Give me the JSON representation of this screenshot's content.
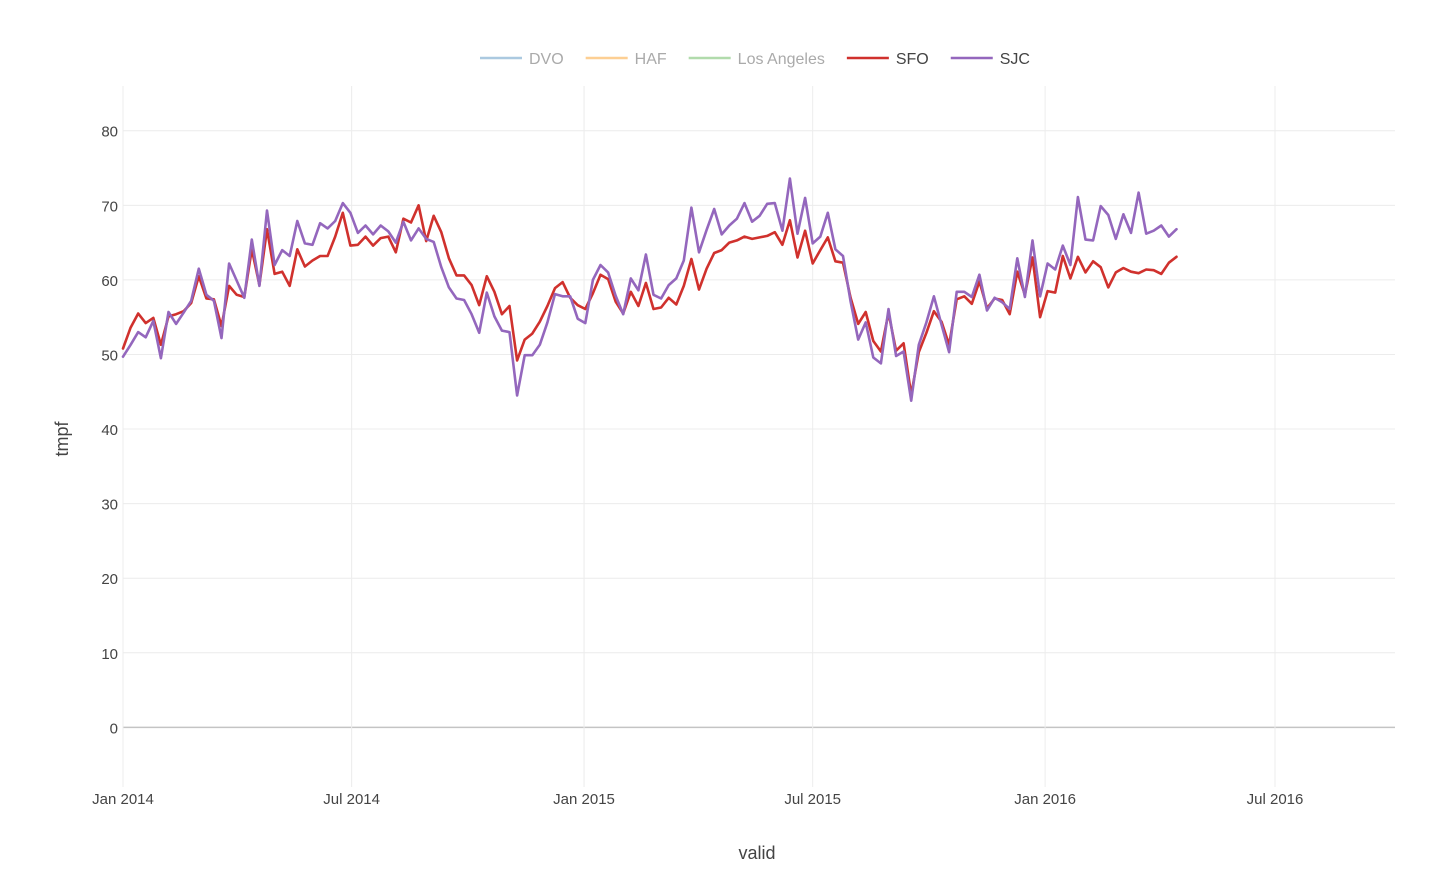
{
  "chart_data": {
    "type": "line",
    "xlabel": "valid",
    "ylabel": "tmpf",
    "x_range": [
      "2014-01-01",
      "2016-10-04"
    ],
    "y_range": [
      -8,
      86
    ],
    "y_ticks": [
      0,
      10,
      20,
      30,
      40,
      50,
      60,
      70,
      80
    ],
    "x_ticks": [
      {
        "date": "2014-01-01",
        "label": "Jan 2014"
      },
      {
        "date": "2014-07-01",
        "label": "Jul 2014"
      },
      {
        "date": "2015-01-01",
        "label": "Jan 2015"
      },
      {
        "date": "2015-07-01",
        "label": "Jul 2015"
      },
      {
        "date": "2016-01-01",
        "label": "Jan 2016"
      },
      {
        "date": "2016-07-01",
        "label": "Jul 2016"
      }
    ],
    "grid": true,
    "legend_position": "top-center",
    "x_start": "2014-01-01",
    "x_step_days": 6,
    "series": [
      {
        "name": "DVO",
        "color": "#8fb7d6",
        "visible": false,
        "values": []
      },
      {
        "name": "HAF",
        "color": "#fdbf6f",
        "visible": false,
        "values": []
      },
      {
        "name": "Los Angeles",
        "color": "#98d091",
        "visible": false,
        "values": []
      },
      {
        "name": "SFO",
        "color": "#d0312d",
        "visible": true,
        "values": [
          50.8,
          53.6,
          55.5,
          54.2,
          54.9,
          51.3,
          55.1,
          55.4,
          55.8,
          56.9,
          60.5,
          57.5,
          57.4,
          53.8,
          59.2,
          58.0,
          57.7,
          64.1,
          59.3,
          66.8,
          60.8,
          61.1,
          59.2,
          64.1,
          61.8,
          62.6,
          63.2,
          63.2,
          65.8,
          69.0,
          64.6,
          64.7,
          65.8,
          64.6,
          65.6,
          65.8,
          63.7,
          68.2,
          67.7,
          70.0,
          65.2,
          68.6,
          66.4,
          62.9,
          60.6,
          60.6,
          59.3,
          56.6,
          60.5,
          58.4,
          55.4,
          56.5,
          49.2,
          52.0,
          52.8,
          54.4,
          56.5,
          58.9,
          59.7,
          57.6,
          56.6,
          56.1,
          58.2,
          60.7,
          60.1,
          57.1,
          55.5,
          58.4,
          56.5,
          59.6,
          56.1,
          56.3,
          57.6,
          56.7,
          59.2,
          62.8,
          58.7,
          61.5,
          63.6,
          64.0,
          65.0,
          65.3,
          65.8,
          65.5,
          65.7,
          65.9,
          66.4,
          64.7,
          68.0,
          63.0,
          66.6,
          62.2,
          64.0,
          65.7,
          62.5,
          62.3,
          57.6,
          54.1,
          55.7,
          51.8,
          50.4,
          55.6,
          50.5,
          51.5,
          44.6,
          50.3,
          52.9,
          55.8,
          54.4,
          51.3,
          57.4,
          57.8,
          56.8,
          59.8,
          56.2,
          57.5,
          57.3,
          55.4,
          61.1,
          58.0,
          63.0,
          55.0,
          58.5,
          58.3,
          63.2,
          60.2,
          63.1,
          61.0,
          62.5,
          61.7,
          59.0,
          61.0,
          61.6,
          61.1,
          60.9,
          61.4,
          61.3,
          60.8,
          62.3,
          63.1
        ]
      },
      {
        "name": "SJC",
        "color": "#9467bd",
        "visible": true,
        "values": [
          49.7,
          51.3,
          53.0,
          52.3,
          54.5,
          49.5,
          55.7,
          54.1,
          55.6,
          57.2,
          61.5,
          58.0,
          57.2,
          52.2,
          62.2,
          59.9,
          57.6,
          65.4,
          59.2,
          69.3,
          62.0,
          64.0,
          63.2,
          67.9,
          64.9,
          64.7,
          67.6,
          66.9,
          67.9,
          70.3,
          69.0,
          66.3,
          67.3,
          66.1,
          67.3,
          66.5,
          65.0,
          67.8,
          65.3,
          66.9,
          65.5,
          65.1,
          61.7,
          59.0,
          57.5,
          57.3,
          55.4,
          52.9,
          58.3,
          55.1,
          53.2,
          53.0,
          44.5,
          49.9,
          49.9,
          51.3,
          54.3,
          58.1,
          57.8,
          57.8,
          54.8,
          54.2,
          60.0,
          62.0,
          61.0,
          57.9,
          55.4,
          60.2,
          58.6,
          63.4,
          58.0,
          57.5,
          59.3,
          60.2,
          62.6,
          69.7,
          63.7,
          66.7,
          69.5,
          66.1,
          67.3,
          68.2,
          70.3,
          67.8,
          68.6,
          70.2,
          70.3,
          66.6,
          73.6,
          66.2,
          71.0,
          64.9,
          65.8,
          69.0,
          64.1,
          63.2,
          57.1,
          52.0,
          54.3,
          49.6,
          48.8,
          56.1,
          49.8,
          50.4,
          43.8,
          51.3,
          54.3,
          57.8,
          54.0,
          50.3,
          58.4,
          58.4,
          57.7,
          60.7,
          55.9,
          57.6,
          57.0,
          56.1,
          62.9,
          57.7,
          65.3,
          57.8,
          62.2,
          61.4,
          64.6,
          62.0,
          71.1,
          65.4,
          65.3,
          69.9,
          68.7,
          65.5,
          68.8,
          66.3,
          71.7,
          66.2,
          66.6,
          67.3,
          65.8,
          66.8
        ]
      }
    ]
  }
}
